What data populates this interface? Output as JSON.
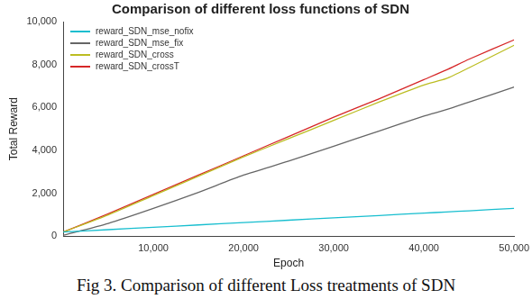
{
  "chart_data": {
    "type": "line",
    "title": "Comparison of different loss functions of SDN",
    "caption": "Fig 3. Comparison of different Loss treatments of SDN",
    "x_label": "Epoch",
    "y_label": "Total Reward",
    "x": [
      0,
      5000,
      10000,
      15000,
      20000,
      25000,
      30000,
      35000,
      40000,
      42500,
      45000,
      50000
    ],
    "series": [
      {
        "name": "reward_SDN_mse_nofix",
        "color": "#17becf",
        "values": [
          200,
          310,
          420,
          530,
          640,
          750,
          860,
          970,
          1080,
          1135,
          1190,
          1300
        ]
      },
      {
        "name": "reward_SDN_mse_fix",
        "color": "#666666",
        "values": [
          50,
          600,
          1300,
          2050,
          2850,
          3500,
          4200,
          4900,
          5600,
          5900,
          6250,
          6950
        ]
      },
      {
        "name": "reward_SDN_cross",
        "color": "#bcbd22",
        "values": [
          200,
          1000,
          1900,
          2800,
          3700,
          4550,
          5400,
          6250,
          7050,
          7350,
          7850,
          8900
        ]
      },
      {
        "name": "reward_SDN_crossT",
        "color": "#d62728",
        "values": [
          200,
          1050,
          1950,
          2850,
          3750,
          4650,
          5550,
          6400,
          7300,
          7750,
          8250,
          9150
        ]
      }
    ],
    "xlim": [
      0,
      50000
    ],
    "xticks": [
      10000,
      20000,
      30000,
      40000,
      50000
    ],
    "ylim": [
      0,
      10000
    ],
    "yticks": [
      0,
      2000,
      4000,
      6000,
      8000,
      10000
    ],
    "grid": false,
    "legend": "top-left"
  }
}
